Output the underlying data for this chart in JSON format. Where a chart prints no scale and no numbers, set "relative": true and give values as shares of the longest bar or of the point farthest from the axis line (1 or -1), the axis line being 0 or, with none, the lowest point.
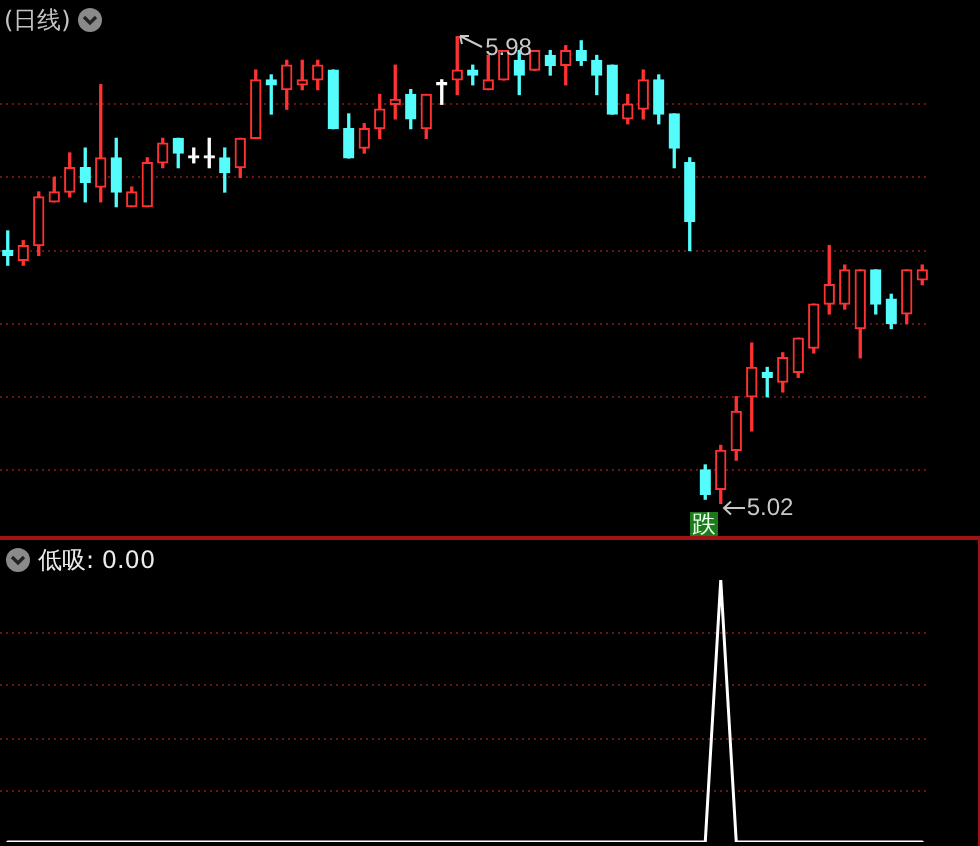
{
  "chart_data": [
    {
      "type": "candlestick",
      "title": "(日线)",
      "categories": [
        null,
        null,
        null,
        null,
        null,
        null,
        null,
        null,
        null,
        null,
        null,
        null,
        null,
        null,
        null,
        null,
        null,
        null,
        null,
        null,
        null,
        null,
        null,
        null,
        null,
        null,
        null,
        null,
        null,
        null,
        null,
        null,
        null,
        null,
        null,
        null,
        null,
        null,
        null,
        null,
        null,
        null,
        null,
        null,
        null,
        null,
        null,
        null,
        null,
        null,
        null,
        null,
        null,
        null,
        null,
        null,
        null,
        null,
        null,
        null
      ],
      "ohlc": [
        [
          5.54,
          5.58,
          5.51,
          5.53
        ],
        [
          5.52,
          5.56,
          5.51,
          5.55
        ],
        [
          5.55,
          5.66,
          5.53,
          5.65
        ],
        [
          5.64,
          5.69,
          5.64,
          5.66
        ],
        [
          5.66,
          5.74,
          5.65,
          5.71
        ],
        [
          5.71,
          5.75,
          5.64,
          5.68
        ],
        [
          5.67,
          5.88,
          5.64,
          5.73
        ],
        [
          5.73,
          5.77,
          5.63,
          5.66
        ],
        [
          5.63,
          5.67,
          5.63,
          5.66
        ],
        [
          5.63,
          5.73,
          5.63,
          5.72
        ],
        [
          5.72,
          5.77,
          5.71,
          5.76
        ],
        [
          5.77,
          5.77,
          5.71,
          5.74
        ],
        [
          5.73,
          5.75,
          5.72,
          5.73
        ],
        [
          5.73,
          5.77,
          5.71,
          5.73
        ],
        [
          5.73,
          5.75,
          5.66,
          5.7
        ],
        [
          5.71,
          5.77,
          5.69,
          5.77
        ],
        [
          5.77,
          5.91,
          5.77,
          5.89
        ],
        [
          5.89,
          5.9,
          5.82,
          5.88
        ],
        [
          5.87,
          5.93,
          5.83,
          5.92
        ],
        [
          5.88,
          5.93,
          5.87,
          5.89
        ],
        [
          5.89,
          5.93,
          5.87,
          5.92
        ],
        [
          5.91,
          5.91,
          5.79,
          5.79
        ],
        [
          5.79,
          5.82,
          5.73,
          5.73
        ],
        [
          5.75,
          5.8,
          5.74,
          5.79
        ],
        [
          5.79,
          5.86,
          5.77,
          5.83
        ],
        [
          5.84,
          5.92,
          5.81,
          5.85
        ],
        [
          5.86,
          5.87,
          5.79,
          5.81
        ],
        [
          5.79,
          5.86,
          5.77,
          5.86
        ],
        [
          5.88,
          5.89,
          5.84,
          5.88
        ],
        [
          5.89,
          5.98,
          5.86,
          5.91
        ],
        [
          5.91,
          5.92,
          5.88,
          5.9
        ],
        [
          5.87,
          5.94,
          5.87,
          5.89
        ],
        [
          5.89,
          5.95,
          5.89,
          5.95
        ],
        [
          5.93,
          5.95,
          5.86,
          5.9
        ],
        [
          5.91,
          5.95,
          5.91,
          5.95
        ],
        [
          5.94,
          5.95,
          5.9,
          5.92
        ],
        [
          5.92,
          5.96,
          5.88,
          5.95
        ],
        [
          5.95,
          5.97,
          5.92,
          5.93
        ],
        [
          5.93,
          5.94,
          5.86,
          5.9
        ],
        [
          5.92,
          5.92,
          5.82,
          5.82
        ],
        [
          5.81,
          5.86,
          5.8,
          5.84
        ],
        [
          5.83,
          5.91,
          5.81,
          5.89
        ],
        [
          5.89,
          5.9,
          5.8,
          5.82
        ],
        [
          5.82,
          5.82,
          5.71,
          5.75
        ],
        [
          5.72,
          5.73,
          5.54,
          5.6
        ],
        [
          5.09,
          5.1,
          5.03,
          5.04
        ],
        [
          5.05,
          5.14,
          5.02,
          5.13
        ],
        [
          5.13,
          5.24,
          5.11,
          5.21
        ],
        [
          5.24,
          5.35,
          5.17,
          5.3
        ],
        [
          5.29,
          5.3,
          5.24,
          5.28
        ],
        [
          5.27,
          5.33,
          5.25,
          5.32
        ],
        [
          5.29,
          5.36,
          5.28,
          5.36
        ],
        [
          5.34,
          5.43,
          5.33,
          5.43
        ],
        [
          5.43,
          5.55,
          5.41,
          5.47
        ],
        [
          5.43,
          5.51,
          5.42,
          5.5
        ],
        [
          5.38,
          5.5,
          5.32,
          5.5
        ],
        [
          5.5,
          5.5,
          5.41,
          5.43
        ],
        [
          5.44,
          5.45,
          5.38,
          5.39
        ],
        [
          5.41,
          5.5,
          5.39,
          5.5
        ],
        [
          5.48,
          5.51,
          5.47,
          5.5
        ]
      ],
      "colors": [
        "#54fcfc",
        "#ff3232",
        "#ff3232",
        "#ff3232",
        "#ff3232",
        "#54fcfc",
        "#ff3232",
        "#54fcfc",
        "#ff3232",
        "#ff3232",
        "#ff3232",
        "#54fcfc",
        "#ffffff",
        "#ffffff",
        "#54fcfc",
        "#ff3232",
        "#ff3232",
        "#54fcfc",
        "#ff3232",
        "#ff3232",
        "#ff3232",
        "#54fcfc",
        "#54fcfc",
        "#ff3232",
        "#ff3232",
        "#ff3232",
        "#54fcfc",
        "#ff3232",
        "#ffffff",
        "#ff3232",
        "#54fcfc",
        "#ff3232",
        "#ff3232",
        "#54fcfc",
        "#ff3232",
        "#54fcfc",
        "#ff3232",
        "#54fcfc",
        "#54fcfc",
        "#54fcfc",
        "#ff3232",
        "#ff3232",
        "#54fcfc",
        "#54fcfc",
        "#54fcfc",
        "#54fcfc",
        "#ff3232",
        "#ff3232",
        "#ff3232",
        "#54fcfc",
        "#ff3232",
        "#ff3232",
        "#ff3232",
        "#ff3232",
        "#ff3232",
        "#ff3232",
        "#54fcfc",
        "#54fcfc",
        "#ff3232",
        "#ff3232"
      ],
      "yticks": [
        {
          "value": 5.84,
          "label": null
        },
        {
          "value": 5.69,
          "label": null
        },
        {
          "value": 5.54,
          "label": null
        },
        {
          "value": 5.39,
          "label": null
        },
        {
          "value": 5.24,
          "label": null
        },
        {
          "value": 5.09,
          "label": null
        }
      ],
      "grid": "y",
      "tick_labels": false,
      "annotations": [
        "5.98",
        "5.02",
        "跌"
      ]
    },
    {
      "type": "line",
      "title": "低吸: 0.00",
      "relative": true,
      "categories": [
        null,
        null,
        null,
        null,
        null,
        null,
        null,
        null,
        null,
        null,
        null,
        null,
        null,
        null,
        null,
        null,
        null,
        null,
        null,
        null,
        null,
        null,
        null,
        null,
        null,
        null,
        null,
        null,
        null,
        null,
        null,
        null,
        null,
        null,
        null,
        null,
        null,
        null,
        null,
        null,
        null,
        null,
        null,
        null,
        null,
        null,
        null,
        null,
        null,
        null,
        null,
        null,
        null,
        null,
        null,
        null,
        null,
        null,
        null,
        null
      ],
      "values": [
        0,
        0,
        0,
        0,
        0,
        0,
        0,
        0,
        0,
        0,
        0,
        0,
        0,
        0,
        0,
        0,
        0,
        0,
        0,
        0,
        0,
        0,
        0,
        0,
        0,
        0,
        0,
        0,
        0,
        0,
        0,
        0,
        0,
        0,
        0,
        0,
        0,
        0,
        0,
        0,
        0,
        0,
        0,
        0,
        0,
        0,
        1,
        0,
        0,
        0,
        0,
        0,
        0,
        0,
        0,
        0,
        0,
        0,
        0,
        0
      ],
      "ref_lines": [
        {
          "axis": "y",
          "value": 0.2,
          "color": "#6a1414",
          "line_style": "dotted"
        },
        {
          "axis": "y",
          "value": 0.4,
          "color": "#6a1414",
          "line_style": "dotted"
        },
        {
          "axis": "y",
          "value": 0.6,
          "color": "#6a1414",
          "line_style": "dotted"
        },
        {
          "axis": "y",
          "value": 0.8,
          "color": "#6a1414",
          "line_style": "dotted"
        }
      ],
      "color": "#ffffff",
      "marker": "none",
      "tick_labels": false
    }
  ]
}
